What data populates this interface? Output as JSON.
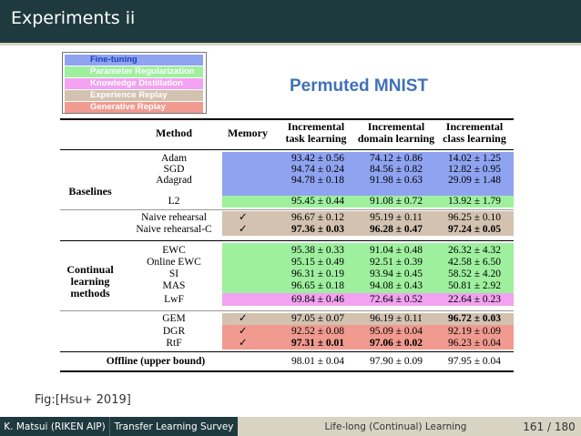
{
  "slide": {
    "title": "Experiments ii",
    "caption": "Fig:[Hsu+ 2019]",
    "footer": {
      "author": "K. Matsui (RIKEN AIP)",
      "talk": "Transfer Learning Survey",
      "section": "Life-long (Continual) Learning",
      "page": "161 / 180"
    }
  },
  "figure": {
    "title": "Permuted MNIST",
    "legend": [
      {
        "label": "Fine-tuning",
        "color": "#8fa3f0",
        "text_color": "#1f3fbf"
      },
      {
        "label": "Parameter Regularization",
        "color": "#9ef09e",
        "text_color": "#ffffff"
      },
      {
        "label": "Knowledge Distillation",
        "color": "#f2a2f0",
        "text_color": "#ffffff"
      },
      {
        "label": "Experience Replay",
        "color": "#d3c2b0",
        "text_color": "#ffffff"
      },
      {
        "label": "Generative Replay",
        "color": "#f09a90",
        "text_color": "#ffffff"
      }
    ],
    "table": {
      "headers": {
        "method": "Method",
        "memory": "Memory",
        "task": "Incremental task learning",
        "domain": "Incremental domain learning",
        "class": "Incremental class learning"
      },
      "groups": {
        "baselines": "Baselines",
        "continual": "Continual learning methods"
      },
      "rows": [
        {
          "method": "Adam",
          "memory": "",
          "task": "93.42 ± 0.56",
          "domain": "74.12 ± 0.86",
          "class": "14.02 ± 1.25"
        },
        {
          "method": "SGD",
          "memory": "",
          "task": "94.74 ± 0.24",
          "domain": "84.56 ± 0.82",
          "class": "12.82 ± 0.95"
        },
        {
          "method": "Adagrad",
          "memory": "",
          "task": "94.78 ± 0.18",
          "domain": "91.98 ± 0.63",
          "class": "29.09 ± 1.48"
        },
        {
          "method": "L2",
          "memory": "",
          "task": "95.45 ± 0.44",
          "domain": "91.08 ± 0.72",
          "class": "13.92 ± 1.79"
        },
        {
          "method": "Naive rehearsal",
          "memory": "✓",
          "task": "96.67 ± 0.12",
          "domain": "95.19 ± 0.11",
          "class": "96.25 ± 0.10"
        },
        {
          "method": "Naive rehearsal-C",
          "memory": "✓",
          "task": "97.36 ± 0.03",
          "domain": "96.28 ± 0.47",
          "class": "97.24 ± 0.05"
        },
        {
          "method": "EWC",
          "memory": "",
          "task": "95.38 ± 0.33",
          "domain": "91.04 ± 0.48",
          "class": "26.32 ± 4.32"
        },
        {
          "method": "Online EWC",
          "memory": "",
          "task": "95.15 ± 0.49",
          "domain": "92.51 ± 0.39",
          "class": "42.58 ± 6.50"
        },
        {
          "method": "SI",
          "memory": "",
          "task": "96.31 ± 0.19",
          "domain": "93.94 ± 0.45",
          "class": "58.52 ± 4.20"
        },
        {
          "method": "MAS",
          "memory": "",
          "task": "96.65 ± 0.18",
          "domain": "94.08 ± 0.43",
          "class": "50.81 ± 2.92"
        },
        {
          "method": "LwF",
          "memory": "",
          "task": "69.84 ± 0.46",
          "domain": "72.64 ± 0.52",
          "class": "22.64 ± 0.23"
        },
        {
          "method": "GEM",
          "memory": "✓",
          "task": "97.05 ± 0.07",
          "domain": "96.19 ± 0.11",
          "class": "96.72 ± 0.03"
        },
        {
          "method": "DGR",
          "memory": "✓",
          "task": "92.52 ± 0.08",
          "domain": "95.09 ± 0.04",
          "class": "92.19 ± 0.09"
        },
        {
          "method": "RtF",
          "memory": "✓",
          "task": "97.31 ± 0.01",
          "domain": "97.06 ± 0.02",
          "class": "96.23 ± 0.04"
        },
        {
          "method": "Offline (upper bound)",
          "memory": "",
          "task": "98.01 ± 0.04",
          "domain": "97.90 ± 0.09",
          "class": "97.95 ± 0.04"
        }
      ]
    }
  }
}
